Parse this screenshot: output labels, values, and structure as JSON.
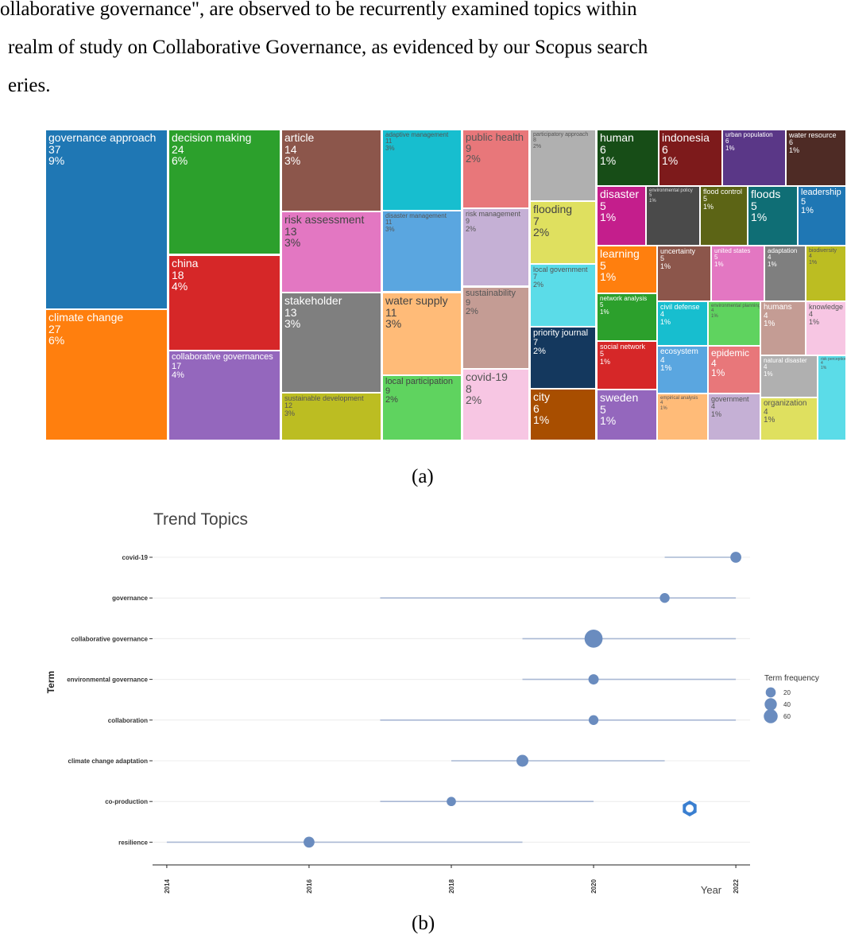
{
  "intro": {
    "line1": "ollaborative governance\", are observed to be recurrently examined topics within",
    "line2": "realm of study on Collaborative Governance, as evidenced by our Scopus search",
    "line3": "eries."
  },
  "captions": {
    "a": "(a)",
    "b": "(b)"
  },
  "chart_data": [
    {
      "type": "treemap",
      "title": "",
      "items": [
        {
          "name": "governance approach",
          "count": "37",
          "pct": "9%",
          "color": "#1f77b4"
        },
        {
          "name": "climate change",
          "count": "27",
          "pct": "6%",
          "color": "#ff7f0e"
        },
        {
          "name": "decision making",
          "count": "24",
          "pct": "6%",
          "color": "#2ca02c"
        },
        {
          "name": "china",
          "count": "18",
          "pct": "4%",
          "color": "#d62728"
        },
        {
          "name": "collaborative governances",
          "count": "17",
          "pct": "4%",
          "color": "#9467bd"
        },
        {
          "name": "article",
          "count": "14",
          "pct": "3%",
          "color": "#8c564b"
        },
        {
          "name": "risk assessment",
          "count": "13",
          "pct": "3%",
          "color": "#e377c2"
        },
        {
          "name": "stakeholder",
          "count": "13",
          "pct": "3%",
          "color": "#7f7f7f"
        },
        {
          "name": "sustainable development",
          "count": "12",
          "pct": "3%",
          "color": "#bcbd22"
        },
        {
          "name": "adaptive management",
          "count": "11",
          "pct": "3%",
          "color": "#17becf"
        },
        {
          "name": "disaster management",
          "count": "11",
          "pct": "3%",
          "color": "#5aa6e0"
        },
        {
          "name": "water supply",
          "count": "11",
          "pct": "3%",
          "color": "#ffbb78"
        },
        {
          "name": "local participation",
          "count": "9",
          "pct": "2%",
          "color": "#5fd35f"
        },
        {
          "name": "public health",
          "count": "9",
          "pct": "2%",
          "color": "#e8777a"
        },
        {
          "name": "risk management",
          "count": "9",
          "pct": "2%",
          "color": "#c5b0d5"
        },
        {
          "name": "sustainability",
          "count": "9",
          "pct": "2%",
          "color": "#c49c94"
        },
        {
          "name": "covid-19",
          "count": "8",
          "pct": "2%",
          "color": "#f7c6e3"
        },
        {
          "name": "participatory approach",
          "count": "8",
          "pct": "2%",
          "color": "#b0b0b0"
        },
        {
          "name": "flooding",
          "count": "7",
          "pct": "2%",
          "color": "#dfe05f"
        },
        {
          "name": "local government",
          "count": "7",
          "pct": "2%",
          "color": "#5bdce8"
        },
        {
          "name": "priority journal",
          "count": "7",
          "pct": "2%",
          "color": "#14385e"
        },
        {
          "name": "city",
          "count": "6",
          "pct": "1%",
          "color": "#a84e00"
        },
        {
          "name": "human",
          "count": "6",
          "pct": "1%",
          "color": "#174d17"
        },
        {
          "name": "indonesia",
          "count": "6",
          "pct": "1%",
          "color": "#7d1a1b"
        },
        {
          "name": "urban population",
          "count": "6",
          "pct": "1%",
          "color": "#5a3787"
        },
        {
          "name": "water resource",
          "count": "6",
          "pct": "1%",
          "color": "#4e2b25"
        },
        {
          "name": "disaster",
          "count": "5",
          "pct": "1%",
          "color": "#c41e8c"
        },
        {
          "name": "environmental policy",
          "count": "5",
          "pct": "1%",
          "color": "#4a4a4a"
        },
        {
          "name": "flood control",
          "count": "5",
          "pct": "1%",
          "color": "#5c6415"
        },
        {
          "name": "floods",
          "count": "5",
          "pct": "1%",
          "color": "#0f6e75"
        },
        {
          "name": "leadership",
          "count": "5",
          "pct": "1%",
          "color": "#1f77b4"
        },
        {
          "name": "learning",
          "count": "5",
          "pct": "1%",
          "color": "#ff7f0e"
        },
        {
          "name": "network analysis",
          "count": "5",
          "pct": "1%",
          "color": "#2ca02c"
        },
        {
          "name": "social network",
          "count": "5",
          "pct": "1%",
          "color": "#d62728"
        },
        {
          "name": "sweden",
          "count": "5",
          "pct": "1%",
          "color": "#9467bd"
        },
        {
          "name": "uncertainty",
          "count": "5",
          "pct": "1%",
          "color": "#8c564b"
        },
        {
          "name": "united states",
          "count": "5",
          "pct": "1%",
          "color": "#e377c2"
        },
        {
          "name": "adaptation",
          "count": "4",
          "pct": "1%",
          "color": "#7f7f7f"
        },
        {
          "name": "biodiversity",
          "count": "4",
          "pct": "1%",
          "color": "#bcbd22"
        },
        {
          "name": "civil defense",
          "count": "4",
          "pct": "1%",
          "color": "#17becf"
        },
        {
          "name": "ecosystem",
          "count": "4",
          "pct": "1%",
          "color": "#5aa6e0"
        },
        {
          "name": "empirical analysis",
          "count": "4",
          "pct": "1%",
          "color": "#ffbb78"
        },
        {
          "name": "environmental planning",
          "count": "4",
          "pct": "1%",
          "color": "#5fd35f"
        },
        {
          "name": "epidemic",
          "count": "4",
          "pct": "1%",
          "color": "#e8777a"
        },
        {
          "name": "government",
          "count": "4",
          "pct": "1%",
          "color": "#c5b0d5"
        },
        {
          "name": "humans",
          "count": "4",
          "pct": "1%",
          "color": "#c49c94"
        },
        {
          "name": "knowledge",
          "count": "4",
          "pct": "1%",
          "color": "#f7c6e3"
        },
        {
          "name": "natural disaster",
          "count": "4",
          "pct": "1%",
          "color": "#b0b0b0"
        },
        {
          "name": "organization",
          "count": "4",
          "pct": "1%",
          "color": "#dfe05f"
        },
        {
          "name": "risk perception",
          "count": "4",
          "pct": "1%",
          "color": "#5bdce8"
        }
      ]
    },
    {
      "type": "scatter",
      "title": "Trend Topics",
      "xlabel": "Year",
      "ylabel": "Term",
      "xlim": [
        2013.8,
        2022.2
      ],
      "xticks": [
        "2014",
        "2016",
        "2018",
        "2020",
        "2022"
      ],
      "terms": [
        {
          "term": "covid-19",
          "q1": 2021,
          "median": 2022,
          "q3": 2022,
          "freq": 15
        },
        {
          "term": "governance",
          "q1": 2017,
          "median": 2021,
          "q3": 2022,
          "freq": 10
        },
        {
          "term": "collaborative governance",
          "q1": 2019,
          "median": 2020,
          "q3": 2022,
          "freq": 70
        },
        {
          "term": "environmental governance",
          "q1": 2019,
          "median": 2020,
          "q3": 2022,
          "freq": 12
        },
        {
          "term": "collaboration",
          "q1": 2017,
          "median": 2020,
          "q3": 2022,
          "freq": 10
        },
        {
          "term": "climate change adaptation",
          "q1": 2018,
          "median": 2019,
          "q3": 2021,
          "freq": 20
        },
        {
          "term": "co-production",
          "q1": 2017,
          "median": 2018,
          "q3": 2020,
          "freq": 8
        },
        {
          "term": "resilience",
          "q1": 2014,
          "median": 2016,
          "q3": 2019,
          "freq": 15
        }
      ],
      "legend": {
        "title": "Term frequency",
        "placement": "right",
        "entries": [
          {
            "label": "20",
            "value": 20
          },
          {
            "label": "40",
            "value": 40
          },
          {
            "label": "60",
            "value": 60
          }
        ]
      },
      "point_color": "#6a8cbf",
      "line_color": "#a9b8d4"
    }
  ]
}
